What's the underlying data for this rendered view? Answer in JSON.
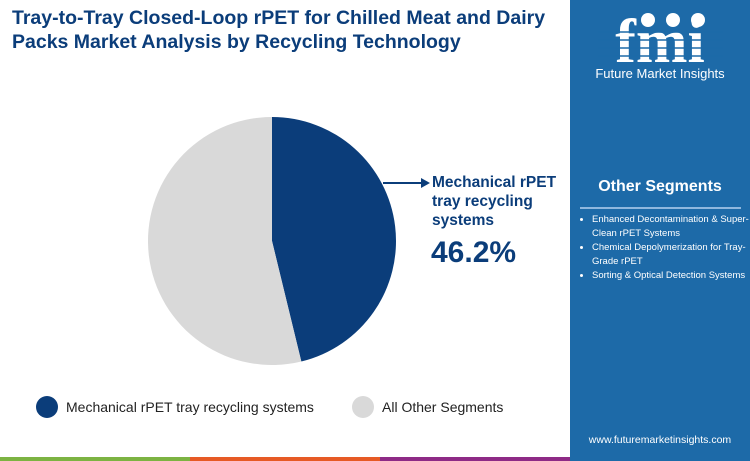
{
  "title": "Tray-to-Tray Closed-Loop rPET for Chilled Meat and Dairy Packs Market Analysis by Recycling Technology",
  "brand": {
    "logo_text": "fmi",
    "name": "Future Market Insights",
    "url": "www.futuremarketinsights.com"
  },
  "other_segments": {
    "heading": "Other Segments",
    "items": [
      "Enhanced Decontamination & Super-Clean rPET Systems",
      "Chemical Depolymerization for Tray-Grade rPET",
      "Sorting & Optical Detection Systems"
    ]
  },
  "chart_data": {
    "type": "pie",
    "title": "",
    "series": [
      {
        "name": "Mechanical rPET tray recycling systems",
        "value": 46.2,
        "color": "#0b3d7a"
      },
      {
        "name": "All Other Segments",
        "value": 53.8,
        "color": "#d9d9d9"
      }
    ],
    "callout": {
      "label": "Mechanical rPET tray recycling systems",
      "value": "46.2%"
    },
    "legend": "bottom"
  },
  "colors": {
    "panel": "#1d6aa8",
    "stripes": [
      "#7cb342",
      "#e65a25",
      "#8e2a86"
    ]
  }
}
